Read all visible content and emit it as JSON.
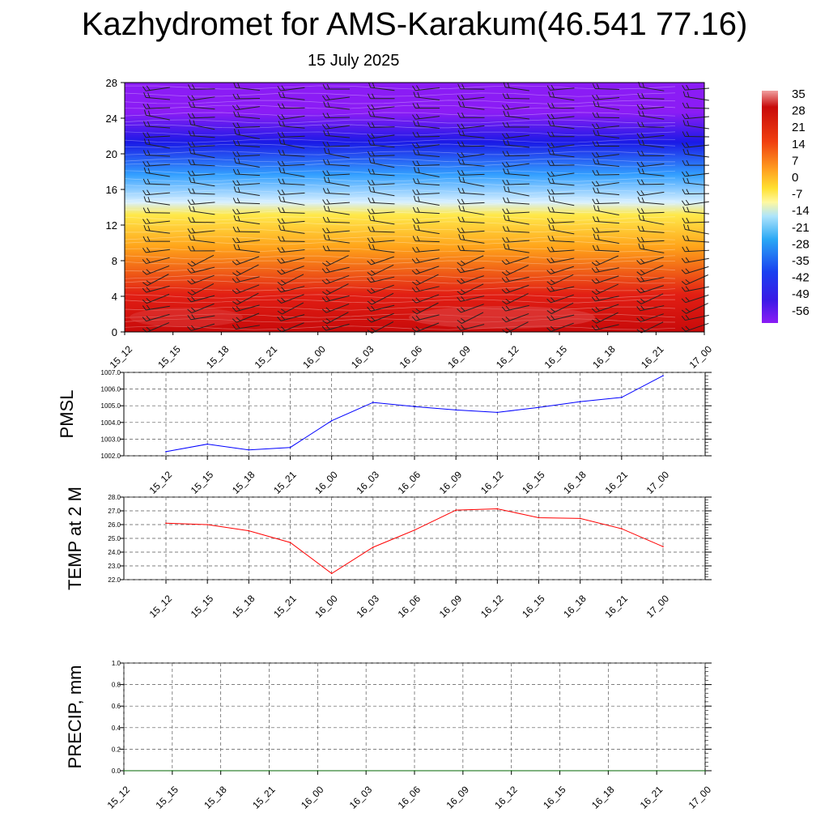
{
  "header": {
    "title": "Kazhydromet for AMS-Karakum(46.541 77.16)",
    "subtitle": "15 July 2025"
  },
  "chart_data": [
    {
      "type": "heatmap",
      "name": "temperature-cross-section",
      "y_ticks": [
        "0",
        "4",
        "8",
        "12",
        "16",
        "20",
        "24",
        "28"
      ],
      "ylim": [
        0,
        28
      ],
      "x_ticks": [
        "15_12",
        "15_15",
        "15_18",
        "15_21",
        "16_00",
        "16_03",
        "16_06",
        "16_09",
        "16_12",
        "16_15",
        "16_18",
        "16_21",
        "17_00"
      ],
      "colorbar_labels": [
        "35",
        "28",
        "21",
        "14",
        "7",
        "0",
        "-7",
        "-14",
        "-21",
        "-28",
        "-35",
        "-42",
        "-49",
        "-56"
      ],
      "colors": {
        "top": "#8b1cf5",
        "upper": "#1a1ae6",
        "mid": "#33a0ff",
        "pale": "#d8f0ff",
        "yellow": "#ffe94a",
        "orange": "#ffa31a",
        "red": "#e21f14",
        "deep_red": "#c80a0a"
      },
      "overlay": "wind barbs"
    },
    {
      "type": "line",
      "name": "pmsl",
      "ylabel": "PMSL",
      "ylim": [
        1002.0,
        1007.0
      ],
      "y_ticks": [
        "1002.0",
        "1003.0",
        "1004.0",
        "1005.0",
        "1006.0",
        "1007.0"
      ],
      "categories": [
        "15_12",
        "15_15",
        "15_18",
        "15_21",
        "16_00",
        "16_03",
        "16_06",
        "16_09",
        "16_12",
        "16_15",
        "16_18",
        "16_21",
        "17_00"
      ],
      "values": [
        1002.25,
        1002.7,
        1002.35,
        1002.5,
        1004.1,
        1005.2,
        1004.95,
        1004.75,
        1004.6,
        1004.9,
        1005.25,
        1005.5,
        1006.8
      ],
      "color": "#0000ff"
    },
    {
      "type": "line",
      "name": "temp-2m",
      "ylabel": "TEMP at 2 M",
      "ylim": [
        22.0,
        28.0
      ],
      "y_ticks": [
        "22.0",
        "23.0",
        "24.0",
        "25.0",
        "26.0",
        "27.0",
        "28.0"
      ],
      "categories": [
        "15_12",
        "15_15",
        "15_18",
        "15_21",
        "16_00",
        "16_03",
        "16_06",
        "16_09",
        "16_12",
        "16_15",
        "16_18",
        "16_21",
        "17_00"
      ],
      "values": [
        26.1,
        26.0,
        25.55,
        24.7,
        22.45,
        24.35,
        25.6,
        27.05,
        27.15,
        26.5,
        26.45,
        25.7,
        24.4
      ],
      "color": "#ff0000"
    },
    {
      "type": "line",
      "name": "precip",
      "ylabel": "PRECIP, mm",
      "ylim": [
        0.0,
        1.0
      ],
      "y_ticks": [
        "0.0",
        "0.2",
        "0.4",
        "0.6",
        "0.8",
        "1.0"
      ],
      "categories": [
        "15_12",
        "15_15",
        "15_18",
        "15_21",
        "16_00",
        "16_03",
        "16_06",
        "16_09",
        "16_12",
        "16_15",
        "16_18",
        "16_21",
        "17_00"
      ],
      "values": [
        0,
        0,
        0,
        0,
        0,
        0,
        0,
        0,
        0,
        0,
        0,
        0,
        0
      ],
      "color": "#006400"
    }
  ]
}
